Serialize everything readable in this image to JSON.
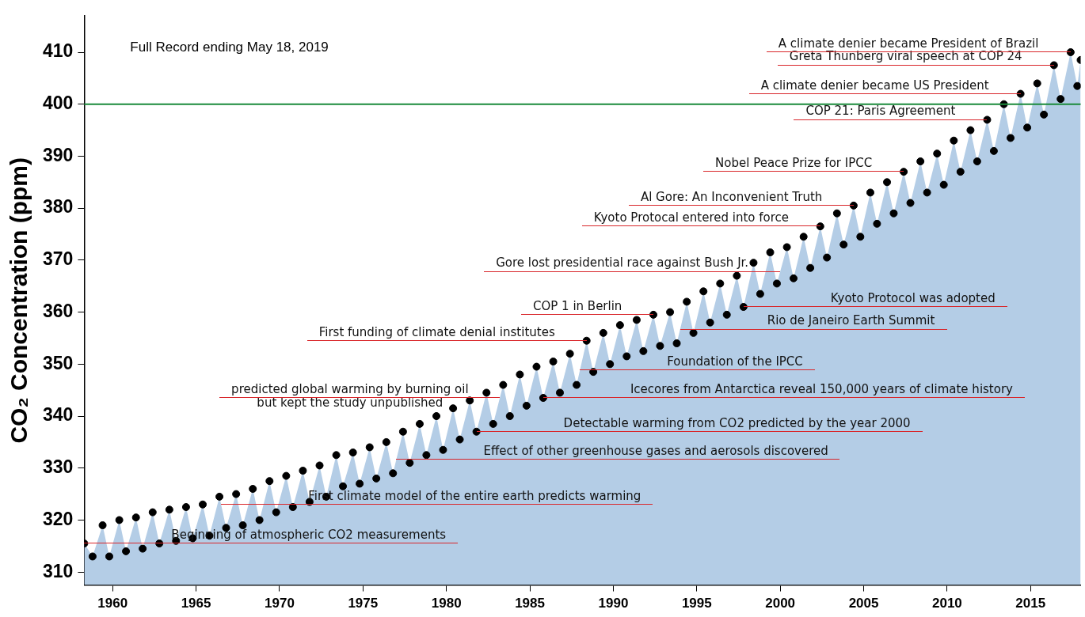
{
  "chart_data": {
    "type": "scatter",
    "ylabel": "CO₂ Concentration (ppm)",
    "x": [
      1958.3,
      1958.8,
      1959.4,
      1959.8,
      1960.4,
      1960.8,
      1961.4,
      1961.8,
      1962.4,
      1962.8,
      1963.4,
      1963.8,
      1964.4,
      1964.8,
      1965.4,
      1965.8,
      1966.4,
      1966.8,
      1967.4,
      1967.8,
      1968.4,
      1968.8,
      1969.4,
      1969.8,
      1970.4,
      1970.8,
      1971.4,
      1971.8,
      1972.4,
      1972.8,
      1973.4,
      1973.8,
      1974.4,
      1974.8,
      1975.4,
      1975.8,
      1976.4,
      1976.8,
      1977.4,
      1977.8,
      1978.4,
      1978.8,
      1979.4,
      1979.8,
      1980.4,
      1980.8,
      1981.4,
      1981.8,
      1982.4,
      1982.8,
      1983.4,
      1983.8,
      1984.4,
      1984.8,
      1985.4,
      1985.8,
      1986.4,
      1986.8,
      1987.4,
      1987.8,
      1988.4,
      1988.8,
      1989.4,
      1989.8,
      1990.4,
      1990.8,
      1991.4,
      1991.8,
      1992.4,
      1992.8,
      1993.4,
      1993.8,
      1994.4,
      1994.8,
      1995.4,
      1995.8,
      1996.4,
      1996.8,
      1997.4,
      1997.8,
      1998.4,
      1998.8,
      1999.4,
      1999.8,
      2000.4,
      2000.8,
      2001.4,
      2001.8,
      2002.4,
      2002.8,
      2003.4,
      2003.8,
      2004.4,
      2004.8,
      2005.4,
      2005.8,
      2006.4,
      2006.8,
      2007.4,
      2007.8,
      2008.4,
      2008.8,
      2009.4,
      2009.8,
      2010.4,
      2010.8,
      2011.4,
      2011.8,
      2012.4,
      2012.8,
      2013.4,
      2013.8,
      2014.4,
      2014.8,
      2015.4,
      2015.8,
      2016.4,
      2016.8,
      2017.4,
      2017.8,
      2018.0
    ],
    "series": [
      {
        "type": "area",
        "color": "#b4cde6",
        "values": [
          315.5,
          313.0,
          319.0,
          313.0,
          320.0,
          314.0,
          320.5,
          314.5,
          321.5,
          315.5,
          322.0,
          316.0,
          322.5,
          316.5,
          323.0,
          317.0,
          324.5,
          318.5,
          325.0,
          319.0,
          326.0,
          320.0,
          327.5,
          321.5,
          328.5,
          322.5,
          329.5,
          323.5,
          330.5,
          324.5,
          332.5,
          326.5,
          333.0,
          327.0,
          334.0,
          328.0,
          335.0,
          329.0,
          337.0,
          331.0,
          338.5,
          332.5,
          340.0,
          333.5,
          341.5,
          335.5,
          343.0,
          337.0,
          344.5,
          338.5,
          346.0,
          340.0,
          348.0,
          342.0,
          349.5,
          343.5,
          350.5,
          344.5,
          352.0,
          346.0,
          354.5,
          348.5,
          356.0,
          350.0,
          357.5,
          351.5,
          358.5,
          352.5,
          359.5,
          353.5,
          360.0,
          354.0,
          362.0,
          356.0,
          364.0,
          358.0,
          365.5,
          359.5,
          367.0,
          361.0,
          369.5,
          363.5,
          371.5,
          365.5,
          372.5,
          366.5,
          374.5,
          368.5,
          376.5,
          370.5,
          379.0,
          373.0,
          380.5,
          374.5,
          383.0,
          377.0,
          385.0,
          379.0,
          387.0,
          381.0,
          389.0,
          383.0,
          390.5,
          384.5,
          393.0,
          387.0,
          395.0,
          389.0,
          397.0,
          391.0,
          400.0,
          393.5,
          402.0,
          395.5,
          404.0,
          398.0,
          407.5,
          401.0,
          410.0,
          403.5,
          408.5
        ]
      },
      {
        "color": "#000000",
        "marker": "circle",
        "values": [
          315.5,
          313.0,
          319.0,
          313.0,
          320.0,
          314.0,
          320.5,
          314.5,
          321.5,
          315.5,
          322.0,
          316.0,
          322.5,
          316.5,
          323.0,
          317.0,
          324.5,
          318.5,
          325.0,
          319.0,
          326.0,
          320.0,
          327.5,
          321.5,
          328.5,
          322.5,
          329.5,
          323.5,
          330.5,
          324.5,
          332.5,
          326.5,
          333.0,
          327.0,
          334.0,
          328.0,
          335.0,
          329.0,
          337.0,
          331.0,
          338.5,
          332.5,
          340.0,
          333.5,
          341.5,
          335.5,
          343.0,
          337.0,
          344.5,
          338.5,
          346.0,
          340.0,
          348.0,
          342.0,
          349.5,
          343.5,
          350.5,
          344.5,
          352.0,
          346.0,
          354.5,
          348.5,
          356.0,
          350.0,
          357.5,
          351.5,
          358.5,
          352.5,
          359.5,
          353.5,
          360.0,
          354.0,
          362.0,
          356.0,
          364.0,
          358.0,
          365.5,
          359.5,
          367.0,
          361.0,
          369.5,
          363.5,
          371.5,
          365.5,
          372.5,
          366.5,
          374.5,
          368.5,
          376.5,
          370.5,
          379.0,
          373.0,
          380.5,
          374.5,
          383.0,
          377.0,
          385.0,
          379.0,
          387.0,
          381.0,
          389.0,
          383.0,
          390.5,
          384.5,
          393.0,
          387.0,
          395.0,
          389.0,
          397.0,
          391.0,
          400.0,
          393.5,
          402.0,
          395.5,
          404.0,
          398.0,
          407.5,
          401.0,
          410.0,
          403.5,
          408.5
        ]
      }
    ],
    "xlim": [
      1958.3,
      2018.0
    ],
    "xticks": [
      1960,
      1965,
      1970,
      1975,
      1980,
      1985,
      1990,
      1995,
      2000,
      2005,
      2010,
      2015
    ],
    "ylim": [
      307.5,
      417
    ],
    "yticks": [
      310,
      320,
      330,
      340,
      350,
      360,
      370,
      380,
      390,
      400,
      410
    ],
    "grid": false,
    "legend": false,
    "ref_lines": [
      {
        "axis": "y",
        "value": 400,
        "color": "#1a8a3a"
      }
    ],
    "annotations": [
      "Full Record ending May 18, 2019",
      {
        "text": "Beginning of atmospheric CO2 measurements",
        "x": 1958.3,
        "y": 315.5
      },
      {
        "text": "First climate model of the entire earth predicts warming",
        "x": 1966.5,
        "y": 323.0
      },
      {
        "text": "Effect of other greenhouse gases and aerosols discovered",
        "x": 1977.0,
        "y": 331.7
      },
      {
        "text": "Detectable warming from CO2 predicted by the year 2000",
        "x": 1981.8,
        "y": 337.0
      },
      {
        "text": "predicted global warming by burning oil\nbut kept the study unpublished",
        "x": 1983.2,
        "y": 343.5
      },
      {
        "text": "Icecores from Antarctica reveal 150,000 years of climate history",
        "x": 1985.8,
        "y": 343.5
      },
      {
        "text": "Foundation of the IPCC",
        "x": 1988.0,
        "y": 348.8
      },
      {
        "text": "First funding of climate denial institutes",
        "x": 1988.4,
        "y": 354.5
      },
      {
        "text": "Rio de Janeiro Earth Summit",
        "x": 1994.0,
        "y": 356.7
      },
      {
        "text": "COP 1 in Berlin",
        "x": 1992.4,
        "y": 359.5
      },
      {
        "text": "Kyoto Protocol was adopted",
        "x": 1997.8,
        "y": 361.0
      },
      {
        "text": "Gore lost presidential race against Bush Jr.",
        "x": 2000.0,
        "y": 367.8
      },
      {
        "text": "Kyoto Protocal entered into force",
        "x": 2002.4,
        "y": 376.5
      },
      {
        "text": "Al Gore: An Inconvenient Truth",
        "x": 2004.4,
        "y": 380.5
      },
      {
        "text": "Nobel Peace Prize for IPCC",
        "x": 2007.4,
        "y": 387.0
      },
      {
        "text": "COP 21: Paris Agreement",
        "x": 2012.4,
        "y": 397.0
      },
      {
        "text": "A climate denier became US President",
        "x": 2014.4,
        "y": 402.0
      },
      {
        "text": "Greta Thunberg viral speech at COP 24",
        "x": 2016.4,
        "y": 407.5
      },
      {
        "text": "A climate denier became President of Brazil",
        "x": 2017.4,
        "y": 410.0
      }
    ]
  }
}
